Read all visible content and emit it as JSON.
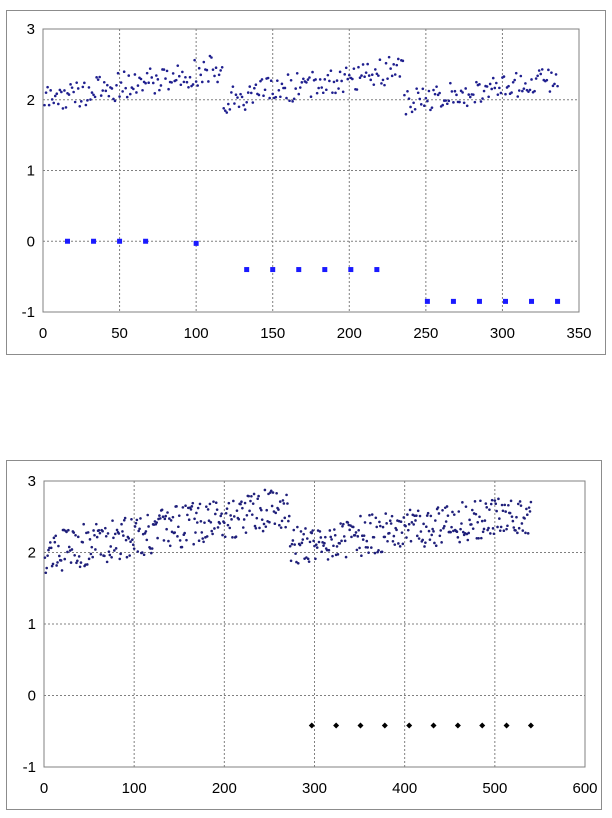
{
  "colors": {
    "scatter_top": "#1f1f8f",
    "markers_top": "#1a1aff",
    "scatter_bottom": "#1f1f7a",
    "markers_bottom": "#000000",
    "grid": "#808080",
    "plot_border": "#808080"
  },
  "chart_data": [
    {
      "type": "scatter",
      "title": "",
      "xlabel": "",
      "ylabel": "",
      "xlim": [
        0,
        350
      ],
      "ylim": [
        -1,
        3
      ],
      "xticks": [
        "0",
        "50",
        "100",
        "150",
        "200",
        "250",
        "300",
        "350"
      ],
      "yticks": [
        "-1",
        "0",
        "1",
        "2",
        "3"
      ],
      "grid": true,
      "legend": "none",
      "series": [
        {
          "marker": "small-dot",
          "segments": [
            {
              "x_start": 1,
              "x_end": 117,
              "y_start": 2.0,
              "y_end": 2.45,
              "spread": 0.2
            },
            {
              "x_start": 118,
              "x_end": 235,
              "y_start": 2.0,
              "y_end": 2.45,
              "spread": 0.2
            },
            {
              "x_start": 236,
              "x_end": 336,
              "y_start": 1.95,
              "y_end": 2.3,
              "spread": 0.18
            }
          ]
        },
        {
          "marker": "square",
          "points": [
            [
              16,
              0
            ],
            [
              33,
              0
            ],
            [
              50,
              0
            ],
            [
              67,
              0
            ],
            [
              100,
              -0.03
            ],
            [
              133,
              -0.4
            ],
            [
              150,
              -0.4
            ],
            [
              167,
              -0.4
            ],
            [
              184,
              -0.4
            ],
            [
              201,
              -0.4
            ],
            [
              218,
              -0.4
            ],
            [
              251,
              -0.85
            ],
            [
              268,
              -0.85
            ],
            [
              285,
              -0.85
            ],
            [
              302,
              -0.85
            ],
            [
              319,
              -0.85
            ],
            [
              336,
              -0.85
            ]
          ]
        }
      ]
    },
    {
      "type": "scatter",
      "title": "",
      "xlabel": "",
      "ylabel": "",
      "xlim": [
        0,
        600
      ],
      "ylim": [
        -1,
        3
      ],
      "xticks": [
        "0",
        "100",
        "200",
        "300",
        "400",
        "500",
        "600"
      ],
      "yticks": [
        "-1",
        "0",
        "1",
        "2",
        "3"
      ],
      "grid": true,
      "legend": "none",
      "series": [
        {
          "marker": "small-dot",
          "segments": [
            {
              "x_start": 1,
              "x_end": 272,
              "y_start": 2.0,
              "y_end": 2.65,
              "spread": 0.3
            },
            {
              "x_start": 273,
              "x_end": 540,
              "y_start": 2.1,
              "y_end": 2.55,
              "spread": 0.28
            }
          ]
        },
        {
          "marker": "diamond",
          "points": [
            [
              297,
              -0.42
            ],
            [
              324,
              -0.42
            ],
            [
              351,
              -0.42
            ],
            [
              378,
              -0.42
            ],
            [
              405,
              -0.42
            ],
            [
              432,
              -0.42
            ],
            [
              459,
              -0.42
            ],
            [
              486,
              -0.42
            ],
            [
              513,
              -0.42
            ],
            [
              540,
              -0.42
            ]
          ]
        }
      ]
    }
  ]
}
